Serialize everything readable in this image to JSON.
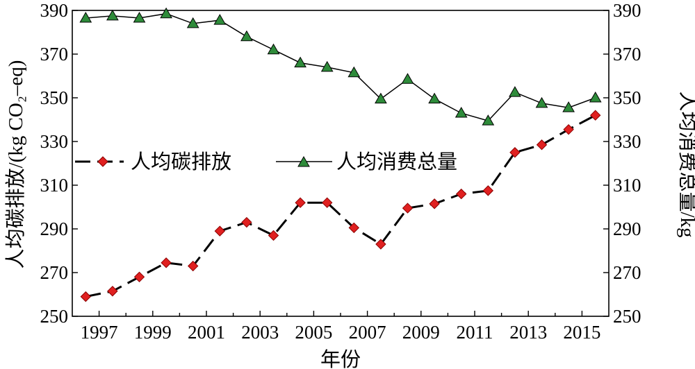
{
  "chart_data": {
    "type": "line",
    "xlabel": "年份",
    "ylabel_left": "人均碳排放/(kg CO₂–eq)",
    "ylabel_right": "人均消费总量/kg",
    "ylim_left": [
      250,
      390
    ],
    "ylim_right": [
      250,
      390
    ],
    "yticks": [
      "250",
      "270",
      "290",
      "310",
      "330",
      "350",
      "370",
      "390"
    ],
    "xticks": [
      "1997",
      "1999",
      "2001",
      "2003",
      "2005",
      "2007",
      "2009",
      "2011",
      "2013",
      "2015"
    ],
    "x": [
      1996.5,
      1997.5,
      1998.5,
      1999.5,
      2000.5,
      2001.5,
      2002.5,
      2003.5,
      2004.5,
      2005.5,
      2006.5,
      2007.5,
      2008.5,
      2009.5,
      2010.5,
      2011.5,
      2012.5,
      2013.5,
      2014.5,
      2015.5
    ],
    "series": [
      {
        "name": "人均碳排放",
        "axis": "left",
        "marker": "diamond",
        "line": "dashed",
        "color": "#e02020",
        "values": [
          259,
          261.5,
          268,
          274.5,
          273,
          289,
          293,
          287,
          302,
          302,
          290.5,
          283,
          299.5,
          301.5,
          306,
          307.5,
          325,
          328.5,
          335.5,
          342
        ]
      },
      {
        "name": "人均消费总量",
        "axis": "right",
        "marker": "triangle",
        "line": "solid",
        "color": "#2e8b3a",
        "values": [
          386.5,
          387.5,
          386.5,
          388.5,
          384,
          385.5,
          378,
          372,
          366,
          364,
          361.5,
          349.5,
          358.5,
          349.5,
          343,
          339.5,
          352.5,
          347.5,
          345.5,
          350
        ]
      }
    ],
    "legend": {
      "placement": "center-left",
      "frame": false
    },
    "grid": false
  }
}
